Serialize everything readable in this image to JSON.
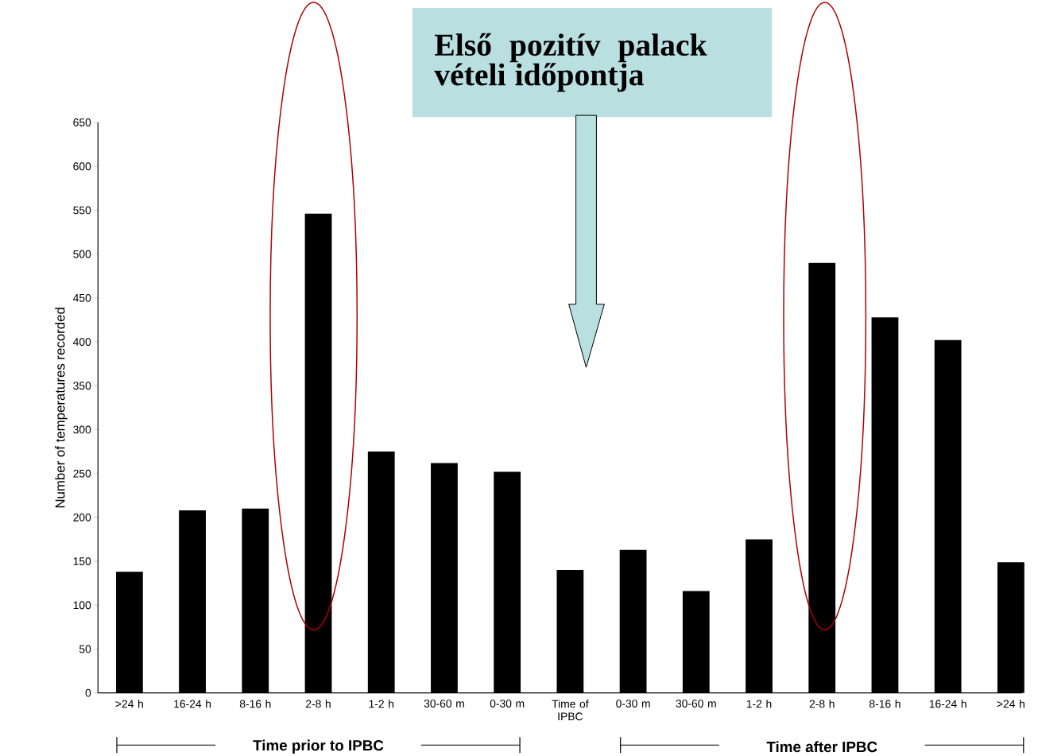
{
  "chart_data": {
    "type": "bar",
    "title": "Első pozitív palack vételi időpontja",
    "ylabel": "Number of temperatures recorded",
    "categories": [
      ">24 h",
      "16-24 h",
      "8-16 h",
      "2-8 h",
      "1-2 h",
      "30-60 m",
      "0-30 m",
      "Time of IPBC",
      "0-30 m",
      "30-60 m",
      "1-2 h",
      "2-8 h",
      "8-16 h",
      "16-24 h",
      ">24 h"
    ],
    "values": [
      138,
      208,
      210,
      546,
      275,
      262,
      252,
      140,
      163,
      116,
      175,
      490,
      428,
      402,
      149
    ],
    "color": "#000000",
    "ylim": [
      0,
      650
    ],
    "yticks": [
      0,
      50,
      100,
      150,
      200,
      250,
      300,
      350,
      400,
      450,
      500,
      550,
      600,
      650
    ],
    "annotations": [
      "Time prior to IPBC",
      "Time after IPBC"
    ],
    "grid": false
  }
}
